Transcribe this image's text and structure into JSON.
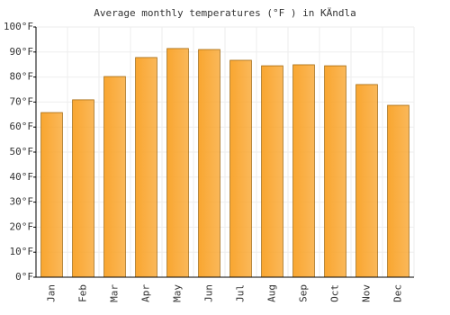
{
  "chart_data": {
    "type": "bar",
    "title": "Average monthly temperatures (°F ) in KÄndla",
    "categories": [
      "Jan",
      "Feb",
      "Mar",
      "Apr",
      "May",
      "Jun",
      "Jul",
      "Aug",
      "Sep",
      "Oct",
      "Nov",
      "Dec"
    ],
    "values": [
      65.8,
      70.9,
      80.2,
      87.8,
      91.4,
      91.0,
      86.7,
      84.5,
      84.9,
      84.5,
      77.0,
      68.7
    ],
    "color": "#f9a630",
    "ylim": [
      0,
      100
    ],
    "yticks": [
      {
        "value": 0,
        "label": "0°F"
      },
      {
        "value": 10,
        "label": "10°F"
      },
      {
        "value": 20,
        "label": "20°F"
      },
      {
        "value": 30,
        "label": "30°F"
      },
      {
        "value": 40,
        "label": "40°F"
      },
      {
        "value": 50,
        "label": "50°F"
      },
      {
        "value": 60,
        "label": "60°F"
      },
      {
        "value": 70,
        "label": "70°F"
      },
      {
        "value": 80,
        "label": "80°F"
      },
      {
        "value": 90,
        "label": "90°F"
      },
      {
        "value": 100,
        "label": "100°F"
      }
    ],
    "grid": true
  }
}
